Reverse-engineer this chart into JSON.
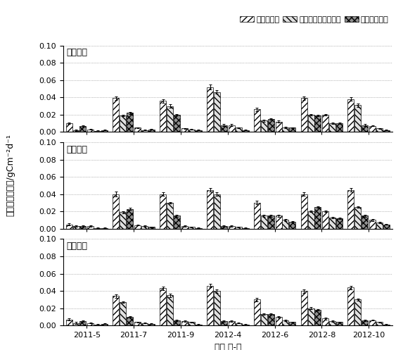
{
  "subplot_titles": [
    "藓类结皮",
    "藻类结皮",
    "混生结皮"
  ],
  "time_labels": [
    "2011-5",
    "2011-7",
    "2011-9",
    "2012-4",
    "2012-6",
    "2012-8",
    "2012-10"
  ],
  "legend_labels": [
    "总土壤呼吸",
    "生物土壤结皮层呼吸",
    "土壤基础呼吸"
  ],
  "xlabel": "时间 年-月",
  "ylabel": "日累计碳释放量/gCm⁻²d⁻¹",
  "panel1": {
    "total": [
      0.01,
      0.003,
      0.039,
      0.005,
      0.036,
      0.004,
      0.052,
      0.008,
      0.026,
      0.012,
      0.039,
      0.02,
      0.038,
      0.007,
      0.052,
      0.007,
      0.036,
      0.009
    ],
    "bsc": [
      0.002,
      0.001,
      0.019,
      0.002,
      0.03,
      0.003,
      0.046,
      0.005,
      0.013,
      0.005,
      0.02,
      0.01,
      0.031,
      0.004,
      0.047,
      0.004,
      0.027,
      0.006
    ],
    "base": [
      0.007,
      0.002,
      0.022,
      0.003,
      0.02,
      0.002,
      0.008,
      0.002,
      0.015,
      0.005,
      0.019,
      0.01,
      0.008,
      0.002,
      0.01,
      0.002,
      0.009,
      0.003
    ],
    "total_err": [
      0.001,
      0.0005,
      0.002,
      0.0005,
      0.002,
      0.0005,
      0.003,
      0.001,
      0.002,
      0.001,
      0.002,
      0.001,
      0.002,
      0.0005,
      0.003,
      0.001,
      0.002,
      0.001
    ],
    "bsc_err": [
      0.001,
      0.0005,
      0.001,
      0.0005,
      0.002,
      0.0005,
      0.002,
      0.0005,
      0.001,
      0.001,
      0.001,
      0.001,
      0.002,
      0.0005,
      0.002,
      0.0005,
      0.001,
      0.001
    ],
    "base_err": [
      0.001,
      0.0005,
      0.001,
      0.0005,
      0.001,
      0.0005,
      0.001,
      0.0005,
      0.001,
      0.0005,
      0.001,
      0.0005,
      0.001,
      0.0005,
      0.001,
      0.0005,
      0.001,
      0.0005
    ]
  },
  "panel2": {
    "total": [
      0.005,
      0.003,
      0.04,
      0.004,
      0.04,
      0.003,
      0.045,
      0.003,
      0.03,
      0.015,
      0.04,
      0.02,
      0.045,
      0.01,
      0.045,
      0.01,
      0.04,
      0.008
    ],
    "bsc": [
      0.003,
      0.001,
      0.019,
      0.003,
      0.03,
      0.002,
      0.04,
      0.002,
      0.015,
      0.01,
      0.02,
      0.013,
      0.025,
      0.007,
      0.035,
      0.007,
      0.035,
      0.006
    ],
    "base": [
      0.003,
      0.001,
      0.023,
      0.002,
      0.015,
      0.001,
      0.003,
      0.001,
      0.015,
      0.008,
      0.025,
      0.012,
      0.015,
      0.005,
      0.01,
      0.004,
      0.01,
      0.004
    ],
    "total_err": [
      0.001,
      0.0005,
      0.003,
      0.0005,
      0.002,
      0.0005,
      0.002,
      0.0005,
      0.002,
      0.001,
      0.002,
      0.001,
      0.002,
      0.001,
      0.002,
      0.001,
      0.003,
      0.001
    ],
    "bsc_err": [
      0.001,
      0.0005,
      0.001,
      0.0005,
      0.001,
      0.0005,
      0.002,
      0.0005,
      0.001,
      0.001,
      0.001,
      0.001,
      0.001,
      0.001,
      0.001,
      0.001,
      0.001,
      0.001
    ],
    "base_err": [
      0.001,
      0.0005,
      0.001,
      0.0005,
      0.001,
      0.0005,
      0.001,
      0.0005,
      0.001,
      0.0005,
      0.001,
      0.0005,
      0.001,
      0.0005,
      0.001,
      0.0005,
      0.001,
      0.0005
    ]
  },
  "panel3": {
    "total": [
      0.007,
      0.003,
      0.034,
      0.004,
      0.043,
      0.005,
      0.046,
      0.005,
      0.03,
      0.01,
      0.04,
      0.008,
      0.044,
      0.006,
      0.043,
      0.007,
      0.053,
      0.006
    ],
    "bsc": [
      0.003,
      0.001,
      0.027,
      0.003,
      0.035,
      0.004,
      0.04,
      0.003,
      0.013,
      0.006,
      0.02,
      0.005,
      0.03,
      0.004,
      0.038,
      0.005,
      0.047,
      0.004
    ],
    "base": [
      0.005,
      0.002,
      0.01,
      0.002,
      0.006,
      0.001,
      0.005,
      0.001,
      0.013,
      0.004,
      0.018,
      0.004,
      0.006,
      0.001,
      0.007,
      0.001,
      0.008,
      0.002
    ],
    "total_err": [
      0.001,
      0.0005,
      0.002,
      0.0005,
      0.002,
      0.0005,
      0.002,
      0.0005,
      0.002,
      0.001,
      0.002,
      0.001,
      0.002,
      0.0005,
      0.002,
      0.001,
      0.003,
      0.001
    ],
    "bsc_err": [
      0.001,
      0.0005,
      0.001,
      0.0005,
      0.002,
      0.0005,
      0.002,
      0.0005,
      0.001,
      0.001,
      0.001,
      0.001,
      0.001,
      0.0005,
      0.001,
      0.001,
      0.002,
      0.001
    ],
    "base_err": [
      0.001,
      0.0005,
      0.001,
      0.0005,
      0.001,
      0.0005,
      0.001,
      0.0005,
      0.001,
      0.0005,
      0.001,
      0.0005,
      0.001,
      0.0005,
      0.001,
      0.0005,
      0.001,
      0.0005
    ]
  },
  "hatch_total": "////",
  "hatch_bsc": "\\\\\\\\",
  "hatch_base": "xxxx",
  "color_total": "#ffffff",
  "color_bsc": "#e0e0e0",
  "color_base": "#909090",
  "edgecolor": "#000000",
  "ylim": [
    0,
    0.1
  ],
  "yticks": [
    0.0,
    0.02,
    0.04,
    0.06,
    0.08,
    0.1
  ],
  "title_fontsize": 9,
  "tick_fontsize": 8,
  "label_fontsize": 9,
  "legend_fontsize": 8,
  "bar_width": 0.22,
  "background_color": "#ffffff"
}
